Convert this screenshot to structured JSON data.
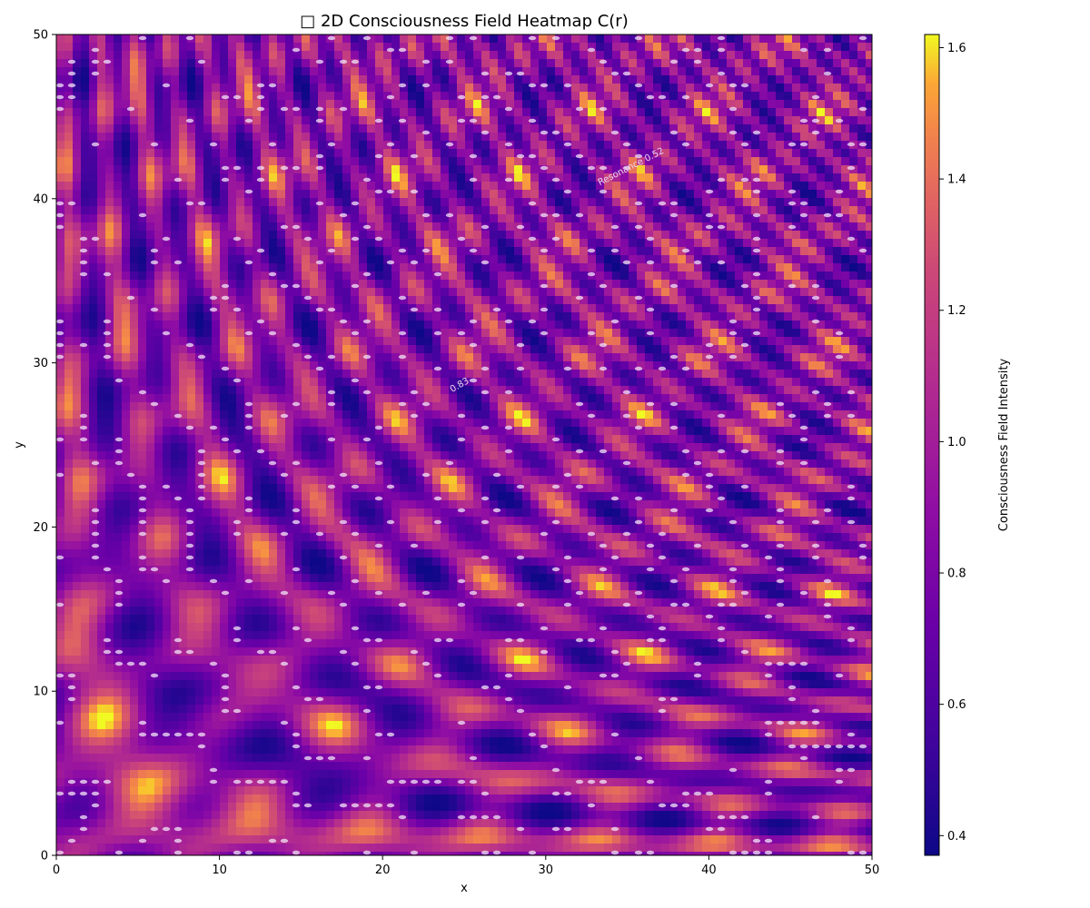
{
  "chart_data": {
    "type": "heatmap",
    "title": "□ 2D Consciousness Field Heatmap C(r)",
    "xlabel": "x",
    "ylabel": "y",
    "xlim": [
      0,
      50
    ],
    "ylim": [
      0,
      50
    ],
    "x_ticks": [
      "0",
      "10",
      "20",
      "30",
      "40",
      "50"
    ],
    "y_ticks": [
      "0",
      "10",
      "20",
      "30",
      "40",
      "50"
    ],
    "colorbar": {
      "label": "Consciousness Field Intensity",
      "colormap": "plasma",
      "range": [
        0.37,
        1.62
      ],
      "ticks": [
        "0.4",
        "0.6",
        "0.8",
        "1.0",
        "1.2",
        "1.4",
        "1.6"
      ],
      "tick_values": [
        0.4,
        0.6,
        0.8,
        1.0,
        1.2,
        1.4,
        1.6
      ]
    },
    "contour_labels": [
      {
        "text": "Resonance 0.52",
        "x": 35.3,
        "y": 41.8,
        "angle": -27
      },
      {
        "text": "0.83",
        "x": 24.8,
        "y": 28.5,
        "angle": -30
      }
    ],
    "grid": false,
    "legend": "none"
  }
}
